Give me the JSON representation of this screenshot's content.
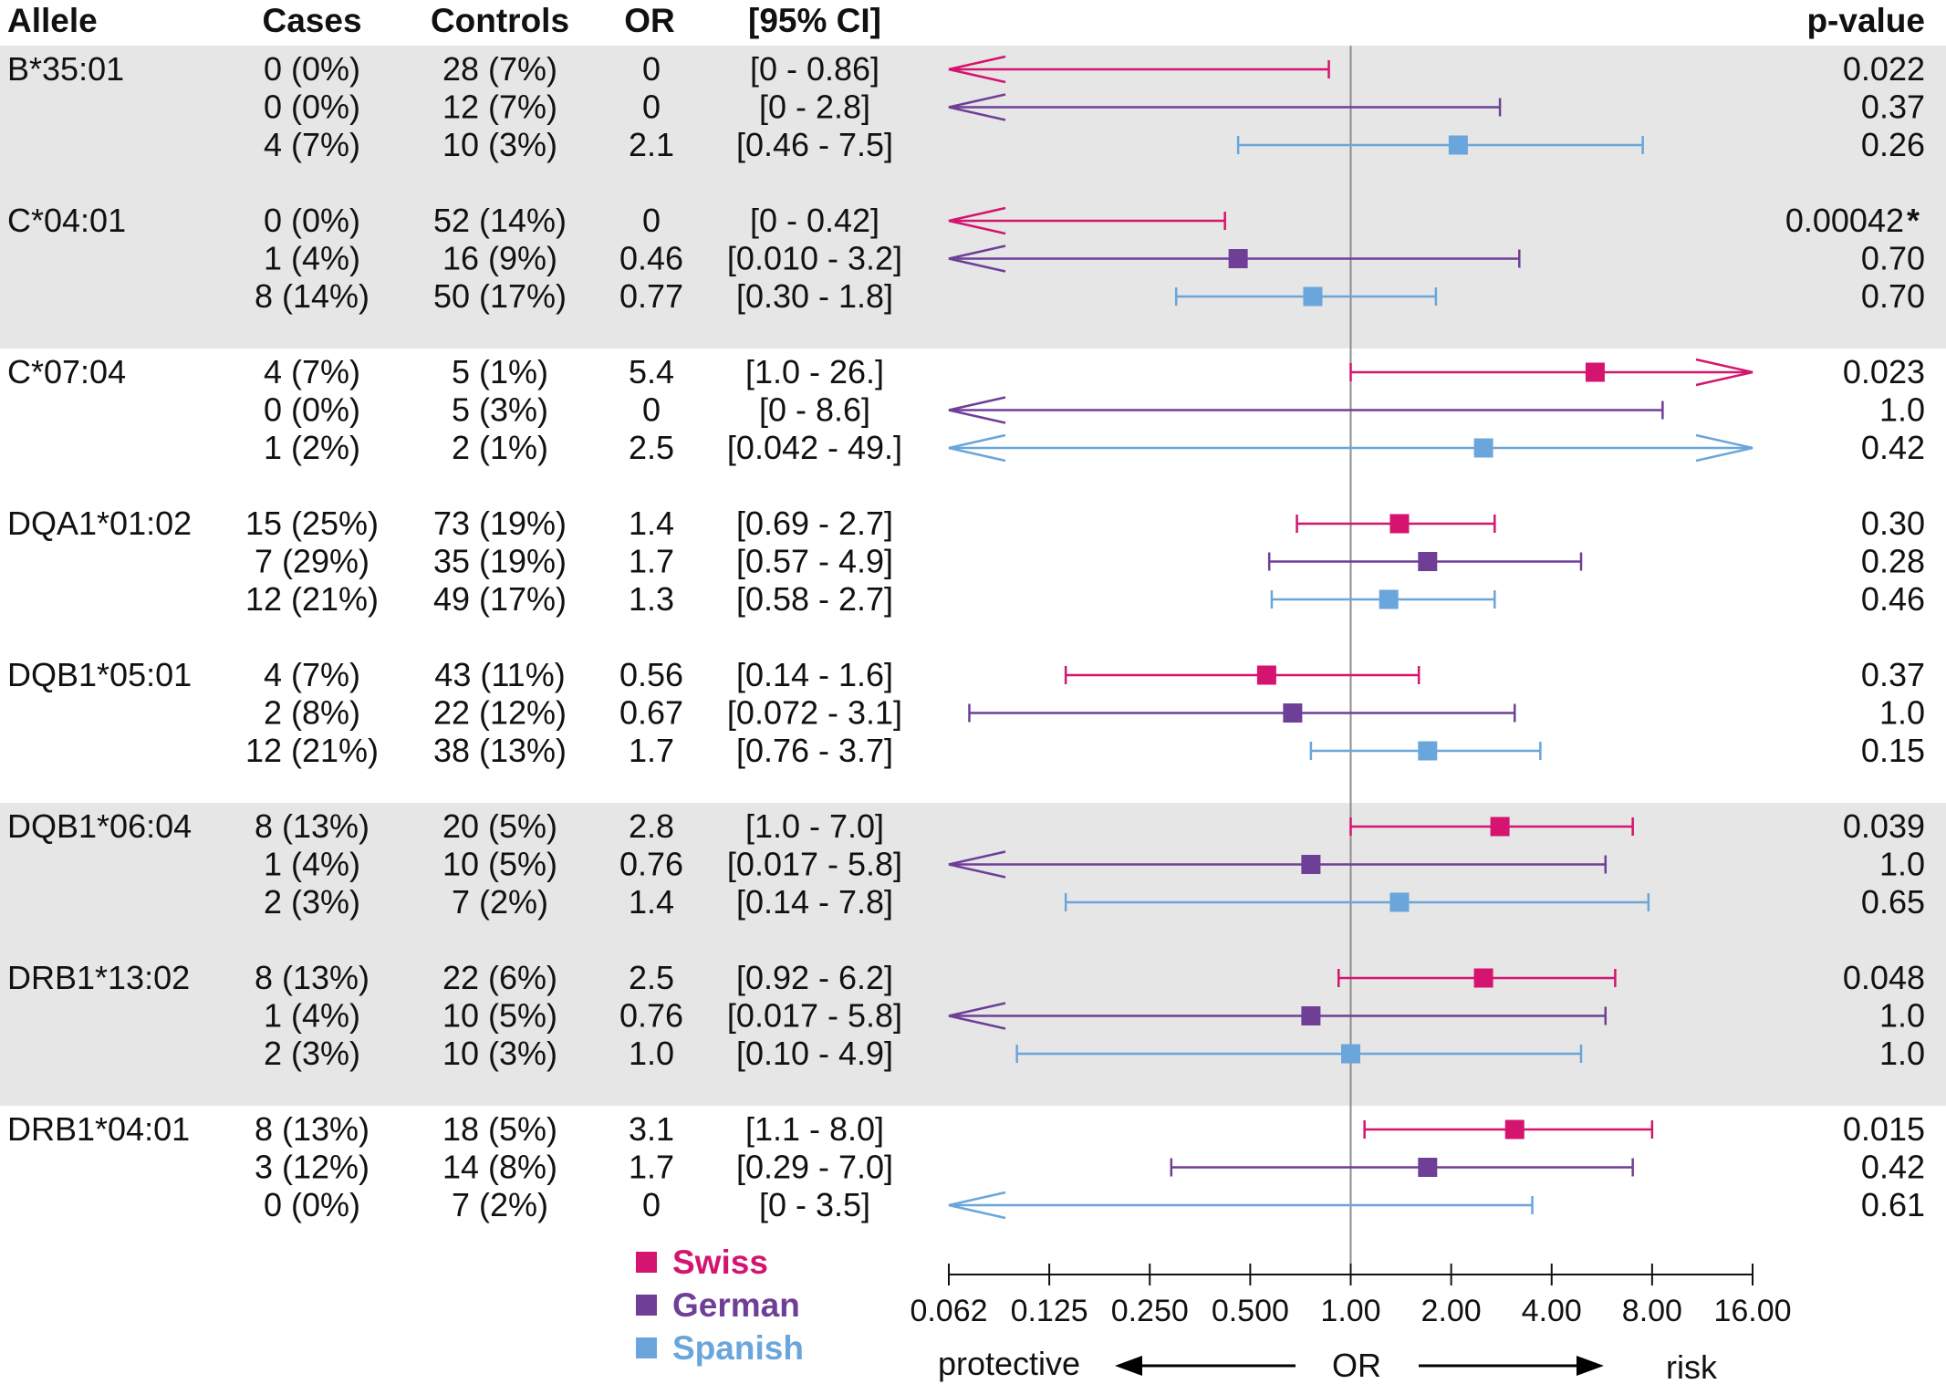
{
  "colors": {
    "Swiss": "#d4146f",
    "German": "#6f3f98",
    "Spanish": "#6aa5db",
    "band": "#e6e6e6",
    "refline": "#8c8c8c",
    "text": "#111111"
  },
  "chart_data": {
    "type": "forest",
    "headers": {
      "allele": "Allele",
      "cases": "Cases",
      "controls": "Controls",
      "or": "OR",
      "ci": "[95% CI]",
      "pvalue": "p-value"
    },
    "xaxis": {
      "scale": "log2",
      "range": [
        0.0625,
        16
      ],
      "ticks": [
        0.0625,
        0.125,
        0.25,
        0.5,
        1,
        2,
        4,
        8,
        16
      ],
      "tick_labels": [
        "0.062",
        "0.125",
        "0.250",
        "0.500",
        "1.00",
        "2.00",
        "4.00",
        "8.00",
        "16.00"
      ],
      "label": "OR",
      "left_label": "protective",
      "right_label": "risk",
      "reference": 1
    },
    "legend": [
      "Swiss",
      "German",
      "Spanish"
    ],
    "groups": [
      {
        "allele": "B*35:01",
        "shaded": true,
        "rows": [
          {
            "series": "Swiss",
            "cases": "0 (0%)",
            "controls": "28 (7%)",
            "or": "0",
            "ci": "[0 - 0.86]",
            "p": "0.022",
            "or_val": null,
            "lo": null,
            "hi": 0.86
          },
          {
            "series": "German",
            "cases": "0 (0%)",
            "controls": "12 (7%)",
            "or": "0",
            "ci": "[0 - 2.8]",
            "p": "0.37",
            "or_val": null,
            "lo": null,
            "hi": 2.8
          },
          {
            "series": "Spanish",
            "cases": "4 (7%)",
            "controls": "10 (3%)",
            "or": "2.1",
            "ci": "[0.46 - 7.5]",
            "p": "0.26",
            "or_val": 2.1,
            "lo": 0.46,
            "hi": 7.5
          }
        ]
      },
      {
        "allele": "C*04:01",
        "shaded": true,
        "rows": [
          {
            "series": "Swiss",
            "cases": "0 (0%)",
            "controls": "52 (14%)",
            "or": "0",
            "ci": "[0 - 0.42]",
            "p": "0.00042",
            "p_mark": "*",
            "or_val": null,
            "lo": null,
            "hi": 0.42
          },
          {
            "series": "German",
            "cases": "1 (4%)",
            "controls": "16 (9%)",
            "or": "0.46",
            "ci": "[0.010 - 3.2]",
            "p": "0.70",
            "or_val": 0.46,
            "lo": 0.01,
            "hi": 3.2
          },
          {
            "series": "Spanish",
            "cases": "8 (14%)",
            "controls": "50 (17%)",
            "or": "0.77",
            "ci": "[0.30 - 1.8]",
            "p": "0.70",
            "or_val": 0.77,
            "lo": 0.3,
            "hi": 1.8
          }
        ]
      },
      {
        "allele": "C*07:04",
        "shaded": false,
        "rows": [
          {
            "series": "Swiss",
            "cases": "4 (7%)",
            "controls": "5 (1%)",
            "or": "5.4",
            "ci": "[1.0 - 26.]",
            "p": "0.023",
            "or_val": 5.4,
            "lo": 1.0,
            "hi": 26
          },
          {
            "series": "German",
            "cases": "0 (0%)",
            "controls": "5 (3%)",
            "or": "0",
            "ci": "[0 - 8.6]",
            "p": "1.0",
            "or_val": null,
            "lo": null,
            "hi": 8.6
          },
          {
            "series": "Spanish",
            "cases": "1 (2%)",
            "controls": "2 (1%)",
            "or": "2.5",
            "ci": "[0.042 - 49.]",
            "p": "0.42",
            "or_val": 2.5,
            "lo": 0.042,
            "hi": 49
          }
        ]
      },
      {
        "allele": "DQA1*01:02",
        "shaded": false,
        "rows": [
          {
            "series": "Swiss",
            "cases": "15 (25%)",
            "controls": "73 (19%)",
            "or": "1.4",
            "ci": "[0.69 - 2.7]",
            "p": "0.30",
            "or_val": 1.4,
            "lo": 0.69,
            "hi": 2.7
          },
          {
            "series": "German",
            "cases": "7 (29%)",
            "controls": "35 (19%)",
            "or": "1.7",
            "ci": "[0.57 - 4.9]",
            "p": "0.28",
            "or_val": 1.7,
            "lo": 0.57,
            "hi": 4.9
          },
          {
            "series": "Spanish",
            "cases": "12 (21%)",
            "controls": "49 (17%)",
            "or": "1.3",
            "ci": "[0.58 - 2.7]",
            "p": "0.46",
            "or_val": 1.3,
            "lo": 0.58,
            "hi": 2.7
          }
        ]
      },
      {
        "allele": "DQB1*05:01",
        "shaded": false,
        "rows": [
          {
            "series": "Swiss",
            "cases": "4 (7%)",
            "controls": "43 (11%)",
            "or": "0.56",
            "ci": "[0.14 - 1.6]",
            "p": "0.37",
            "or_val": 0.56,
            "lo": 0.14,
            "hi": 1.6
          },
          {
            "series": "German",
            "cases": "2 (8%)",
            "controls": "22 (12%)",
            "or": "0.67",
            "ci": "[0.072 - 3.1]",
            "p": "1.0",
            "or_val": 0.67,
            "lo": 0.072,
            "hi": 3.1
          },
          {
            "series": "Spanish",
            "cases": "12 (21%)",
            "controls": "38 (13%)",
            "or": "1.7",
            "ci": "[0.76 - 3.7]",
            "p": "0.15",
            "or_val": 1.7,
            "lo": 0.76,
            "hi": 3.7
          }
        ]
      },
      {
        "allele": "DQB1*06:04",
        "shaded": true,
        "rows": [
          {
            "series": "Swiss",
            "cases": "8 (13%)",
            "controls": "20 (5%)",
            "or": "2.8",
            "ci": "[1.0 - 7.0]",
            "p": "0.039",
            "or_val": 2.8,
            "lo": 1.0,
            "hi": 7.0
          },
          {
            "series": "German",
            "cases": "1 (4%)",
            "controls": "10 (5%)",
            "or": "0.76",
            "ci": "[0.017 - 5.8]",
            "p": "1.0",
            "or_val": 0.76,
            "lo": 0.017,
            "hi": 5.8
          },
          {
            "series": "Spanish",
            "cases": "2 (3%)",
            "controls": "7 (2%)",
            "or": "1.4",
            "ci": "[0.14 - 7.8]",
            "p": "0.65",
            "or_val": 1.4,
            "lo": 0.14,
            "hi": 7.8
          }
        ]
      },
      {
        "allele": "DRB1*13:02",
        "shaded": true,
        "rows": [
          {
            "series": "Swiss",
            "cases": "8 (13%)",
            "controls": "22 (6%)",
            "or": "2.5",
            "ci": "[0.92 - 6.2]",
            "p": "0.048",
            "or_val": 2.5,
            "lo": 0.92,
            "hi": 6.2
          },
          {
            "series": "German",
            "cases": "1 (4%)",
            "controls": "10 (5%)",
            "or": "0.76",
            "ci": "[0.017 - 5.8]",
            "p": "1.0",
            "or_val": 0.76,
            "lo": 0.017,
            "hi": 5.8
          },
          {
            "series": "Spanish",
            "cases": "2 (3%)",
            "controls": "10 (3%)",
            "or": "1.0",
            "ci": "[0.10 - 4.9]",
            "p": "1.0",
            "or_val": 1.0,
            "lo": 0.1,
            "hi": 4.9
          }
        ]
      },
      {
        "allele": "DRB1*04:01",
        "shaded": false,
        "rows": [
          {
            "series": "Swiss",
            "cases": "8 (13%)",
            "controls": "18 (5%)",
            "or": "3.1",
            "ci": "[1.1 - 8.0]",
            "p": "0.015",
            "or_val": 3.1,
            "lo": 1.1,
            "hi": 8.0
          },
          {
            "series": "German",
            "cases": "3 (12%)",
            "controls": "14 (8%)",
            "or": "1.7",
            "ci": "[0.29 - 7.0]",
            "p": "0.42",
            "or_val": 1.7,
            "lo": 0.29,
            "hi": 7.0
          },
          {
            "series": "Spanish",
            "cases": "0 (0%)",
            "controls": "7 (2%)",
            "or": "0",
            "ci": "[0 - 3.5]",
            "p": "0.61",
            "or_val": null,
            "lo": null,
            "hi": 3.5
          }
        ]
      }
    ]
  }
}
